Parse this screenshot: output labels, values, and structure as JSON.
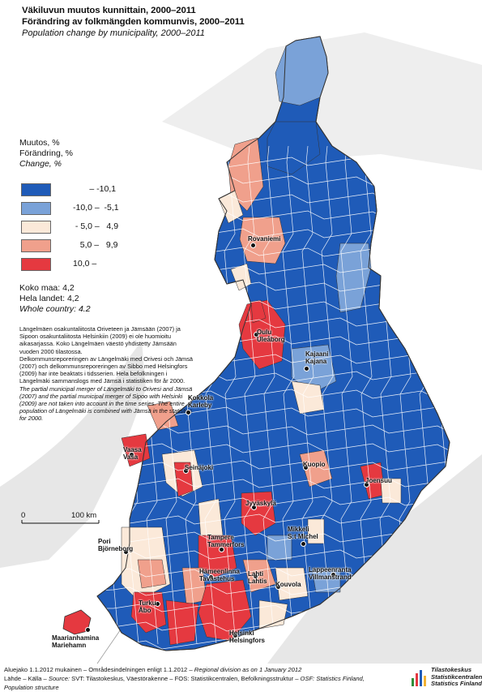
{
  "title": {
    "fi": "Väkiluvun muutos kunnittain, 2000–2011",
    "sv": "Förändring av folkmängden kommunvis, 2000–2011",
    "en": "Population change by municipality, 2000–2011"
  },
  "legend": {
    "heading_fi": "Muutos, %",
    "heading_sv": "Förändring, %",
    "heading_en": "Change, %",
    "classes": [
      {
        "label": "       – -10,1",
        "color": "#1f5bb8"
      },
      {
        "label": "-10,0 –  -5,1",
        "color": "#7aa2d8"
      },
      {
        "label": " - 5,0 –   4,9",
        "color": "#fbe9d9"
      },
      {
        "label": "   5,0 –   9,9",
        "color": "#f0a08c"
      },
      {
        "label": "10,0 –",
        "color": "#e53940"
      }
    ]
  },
  "country": {
    "fi": "Koko maa: 4,2",
    "sv": "Hela landet: 4,2",
    "en": "Whole country: 4.2"
  },
  "note": {
    "fi": "Längelmäen osakuntaliitosta Oriveteen ja Jämsään (2007) ja Sipoon osakuntaliitosta Helsinkiin (2009) ei ole huomioitu aikasarjassa. Koko Längelmäen väestö yhdistetty Jämsään vuoden 2000 tilastossa.",
    "sv": "Delkommunsreporeringen av Längelmäki med Orivesi och Jämsä (2007) och delkommunsreporeringen av Sibbo med Helsingfors (2009) har inte beaktats i tidsserien. Hela befolkningen i Längelmäki sammanslogs med Jämsä i statistiken för år 2000.",
    "en": "The partial municipal merger of Längelmäki to Orivesi and Jämsä (2007) and the partial municipal merger of Sipoo with Helsinki (2009) are not taken into account in the time series. The entire population of Längelmäki is combined with Jämsä in the statistics for 2000."
  },
  "scale": {
    "zero": "0",
    "distance": "100 km"
  },
  "cities": [
    {
      "name": "Rovaniemi"
    },
    {
      "name": "Oulu\nUleåborg"
    },
    {
      "name": "Kajaani\nKajana"
    },
    {
      "name": "Kokkola\nKarleby"
    },
    {
      "name": "Vaasa\nVasa"
    },
    {
      "name": "Seinäjoki"
    },
    {
      "name": "Kuopio"
    },
    {
      "name": "Joensuu"
    },
    {
      "name": "Jyväskylä"
    },
    {
      "name": "Mikkeli\nS:t Michel"
    },
    {
      "name": "Pori\nBjörneborg"
    },
    {
      "name": "Tampere\nTammerfors"
    },
    {
      "name": "Hämeenlinna\nTavastehus"
    },
    {
      "name": "Lahti\nLahtis"
    },
    {
      "name": "Lappeenranta\nVillmanstrand"
    },
    {
      "name": "Kouvola"
    },
    {
      "name": "Turku\nÅbo"
    },
    {
      "name": "Helsinki\nHelsingfors"
    },
    {
      "name": "Maarianhamina\nMariehamn"
    }
  ],
  "footer": {
    "line1_a": "Aluejako 1.1.2012 mukainen – Områdesindelningen enligt 1.1.2012 – ",
    "line1_b": "Regional division as on 1 January 2012",
    "line2_a": "Lähde – Källa – ",
    "line2_b": "Source:",
    "line2_c": " SVT: Tilastokeskus, Väestörakenne – FOS: Statistikcentralen, Befolkningsstruktur – ",
    "line2_d": "OSF: Statistics Finland,",
    "line3": "Population structure"
  },
  "logo": {
    "line1": "Tilastokeskus",
    "line2": "Statistikcentralen",
    "line3": "Statistics Finland"
  }
}
